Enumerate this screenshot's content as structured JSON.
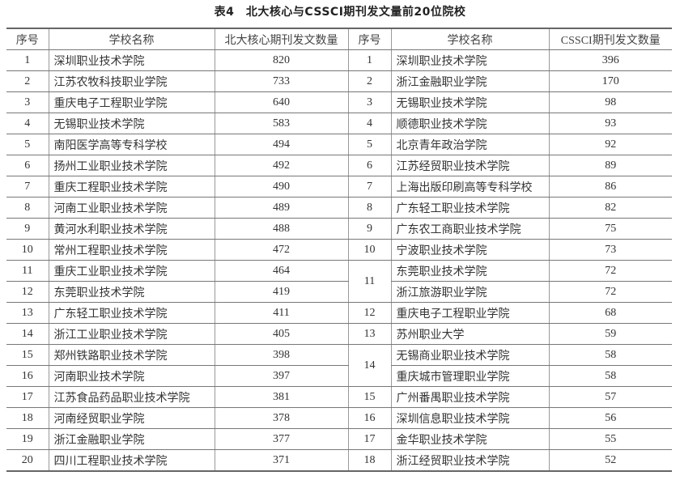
{
  "title": "表4　北大核心与CSSCI期刊发文量前20位院校",
  "headers": {
    "left_rank": "序号",
    "left_name": "学校名称",
    "left_count": "北大核心期刊发文数量",
    "right_rank": "序号",
    "right_name": "学校名称",
    "right_count": "CSSCI期刊发文数量"
  },
  "left": [
    {
      "rank": "1",
      "name": "深圳职业技术学院",
      "count": "820"
    },
    {
      "rank": "2",
      "name": "江苏农牧科技职业学院",
      "count": "733"
    },
    {
      "rank": "3",
      "name": "重庆电子工程职业学院",
      "count": "640"
    },
    {
      "rank": "4",
      "name": "无锡职业技术学院",
      "count": "583"
    },
    {
      "rank": "5",
      "name": "南阳医学高等专科学校",
      "count": "494"
    },
    {
      "rank": "6",
      "name": "扬州工业职业技术学院",
      "count": "492"
    },
    {
      "rank": "7",
      "name": "重庆工程职业技术学院",
      "count": "490"
    },
    {
      "rank": "8",
      "name": "河南工业职业技术学院",
      "count": "489"
    },
    {
      "rank": "9",
      "name": "黄河水利职业技术学院",
      "count": "488"
    },
    {
      "rank": "10",
      "name": "常州工程职业技术学院",
      "count": "472"
    },
    {
      "rank": "11",
      "name": "重庆工业职业技术学院",
      "count": "464"
    },
    {
      "rank": "12",
      "name": "东莞职业技术学院",
      "count": "419"
    },
    {
      "rank": "13",
      "name": "广东轻工职业技术学院",
      "count": "411"
    },
    {
      "rank": "14",
      "name": "浙江工业职业技术学院",
      "count": "405"
    },
    {
      "rank": "15",
      "name": "郑州铁路职业技术学院",
      "count": "398"
    },
    {
      "rank": "16",
      "name": "河南职业技术学院",
      "count": "397"
    },
    {
      "rank": "17",
      "name": "江苏食品药品职业技术学院",
      "count": "381"
    },
    {
      "rank": "18",
      "name": "河南经贸职业学院",
      "count": "378"
    },
    {
      "rank": "19",
      "name": "浙江金融职业学院",
      "count": "377"
    },
    {
      "rank": "20",
      "name": "四川工程职业技术学院",
      "count": "371"
    }
  ],
  "right": [
    {
      "rank": "1",
      "schools": [
        {
          "name": "深圳职业技术学院",
          "count": "396"
        }
      ]
    },
    {
      "rank": "2",
      "schools": [
        {
          "name": "浙江金融职业学院",
          "count": "170"
        }
      ]
    },
    {
      "rank": "3",
      "schools": [
        {
          "name": "无锡职业技术学院",
          "count": "98"
        }
      ]
    },
    {
      "rank": "4",
      "schools": [
        {
          "name": "顺德职业技术学院",
          "count": "93"
        }
      ]
    },
    {
      "rank": "5",
      "schools": [
        {
          "name": "北京青年政治学院",
          "count": "92"
        }
      ]
    },
    {
      "rank": "6",
      "schools": [
        {
          "name": "江苏经贸职业技术学院",
          "count": "89"
        }
      ]
    },
    {
      "rank": "7",
      "schools": [
        {
          "name": "上海出版印刷高等专科学校",
          "count": "86"
        }
      ]
    },
    {
      "rank": "8",
      "schools": [
        {
          "name": "广东轻工职业技术学院",
          "count": "82"
        }
      ]
    },
    {
      "rank": "9",
      "schools": [
        {
          "name": "广东农工商职业技术学院",
          "count": "75"
        }
      ]
    },
    {
      "rank": "10",
      "schools": [
        {
          "name": "宁波职业技术学院",
          "count": "73"
        }
      ]
    },
    {
      "rank": "11",
      "schools": [
        {
          "name": "东莞职业技术学院",
          "count": "72"
        },
        {
          "name": "浙江旅游职业学院",
          "count": "72"
        }
      ]
    },
    {
      "rank": "12",
      "schools": [
        {
          "name": "重庆电子工程职业学院",
          "count": "68"
        }
      ]
    },
    {
      "rank": "13",
      "schools": [
        {
          "name": "苏州职业大学",
          "count": "59"
        }
      ]
    },
    {
      "rank": "14",
      "schools": [
        {
          "name": "无锡商业职业技术学院",
          "count": "58"
        },
        {
          "name": "重庆城市管理职业学院",
          "count": "58"
        }
      ]
    },
    {
      "rank": "15",
      "schools": [
        {
          "name": "广州番禺职业技术学院",
          "count": "57"
        }
      ]
    },
    {
      "rank": "16",
      "schools": [
        {
          "name": "深圳信息职业技术学院",
          "count": "56"
        }
      ]
    },
    {
      "rank": "17",
      "schools": [
        {
          "name": "金华职业技术学院",
          "count": "55"
        }
      ]
    },
    {
      "rank": "18",
      "schools": [
        {
          "name": "浙江经贸职业技术学院",
          "count": "52"
        }
      ]
    }
  ]
}
